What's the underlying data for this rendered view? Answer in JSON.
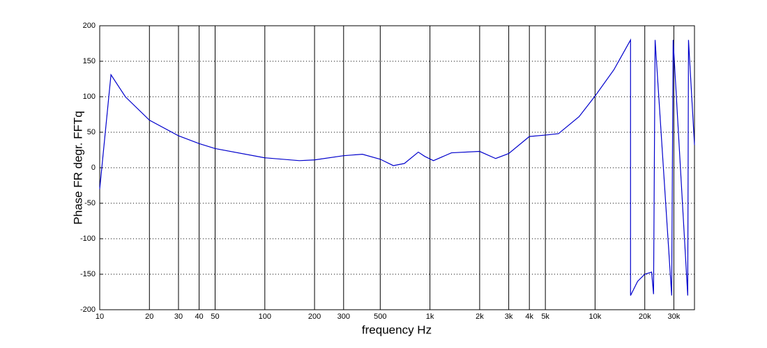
{
  "chart_data": {
    "type": "line",
    "xlabel": "frequency  Hz",
    "ylabel": "Phase FR degr.  FFTq",
    "x": [
      10,
      11.7,
      14.3,
      20,
      30,
      40,
      50,
      100,
      162,
      200,
      300,
      390,
      500,
      600,
      700,
      850,
      930,
      1050,
      1350,
      2000,
      2500,
      3000,
      4000,
      5000,
      6000,
      8000,
      10000,
      13000,
      16400,
      16400,
      18100,
      20000,
      22000,
      22600,
      23100,
      29100,
      29700,
      36400,
      36800,
      40000
    ],
    "values": [
      -30,
      131,
      100,
      67,
      45,
      34,
      27,
      14,
      10,
      11,
      17,
      19,
      12,
      3,
      6,
      22,
      16,
      10,
      21,
      23,
      13,
      20,
      44,
      46,
      48,
      72,
      101,
      138,
      180,
      -180,
      -160,
      -150,
      -147,
      -178,
      180,
      -180,
      180,
      -180,
      180,
      32
    ],
    "color": "#0000cc",
    "log_x": true,
    "xlim": [
      10,
      40000
    ],
    "ylim": [
      -200,
      200
    ],
    "xticks": [
      10,
      20,
      30,
      40,
      50,
      100,
      200,
      300,
      500,
      {
        "value": 1000,
        "label": "1k"
      },
      {
        "value": 2000,
        "label": "2k"
      },
      {
        "value": 3000,
        "label": "3k"
      },
      {
        "value": 4000,
        "label": "4k"
      },
      {
        "value": 5000,
        "label": "5k"
      },
      {
        "value": 10000,
        "label": "10k"
      },
      {
        "value": 20000,
        "label": "20k"
      },
      {
        "value": 30000,
        "label": "30k"
      }
    ],
    "yticks": [
      -200,
      -150,
      -100,
      -50,
      0,
      50,
      100,
      150,
      200
    ],
    "grid": true
  }
}
